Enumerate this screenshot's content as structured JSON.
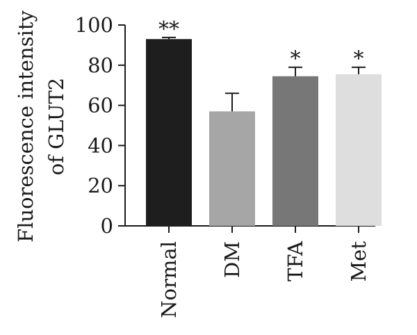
{
  "chart_data": {
    "type": "bar",
    "ylabel_line1": "Fluorescence intensity",
    "ylabel_line2": "of GLUT2",
    "ylim": [
      0,
      100
    ],
    "yticks": [
      0,
      20,
      40,
      60,
      80,
      100
    ],
    "categories": [
      "Normal",
      "DM",
      "TFA",
      "Met"
    ],
    "values": [
      93,
      57,
      74.5,
      75.5
    ],
    "errors": [
      0.8,
      9,
      4.5,
      3.5
    ],
    "significance": [
      "**",
      "",
      "*",
      "*"
    ],
    "colors": [
      "#1e1e1e",
      "#a6a6a6",
      "#777777",
      "#dedede"
    ],
    "grid": false,
    "legend": "none"
  }
}
